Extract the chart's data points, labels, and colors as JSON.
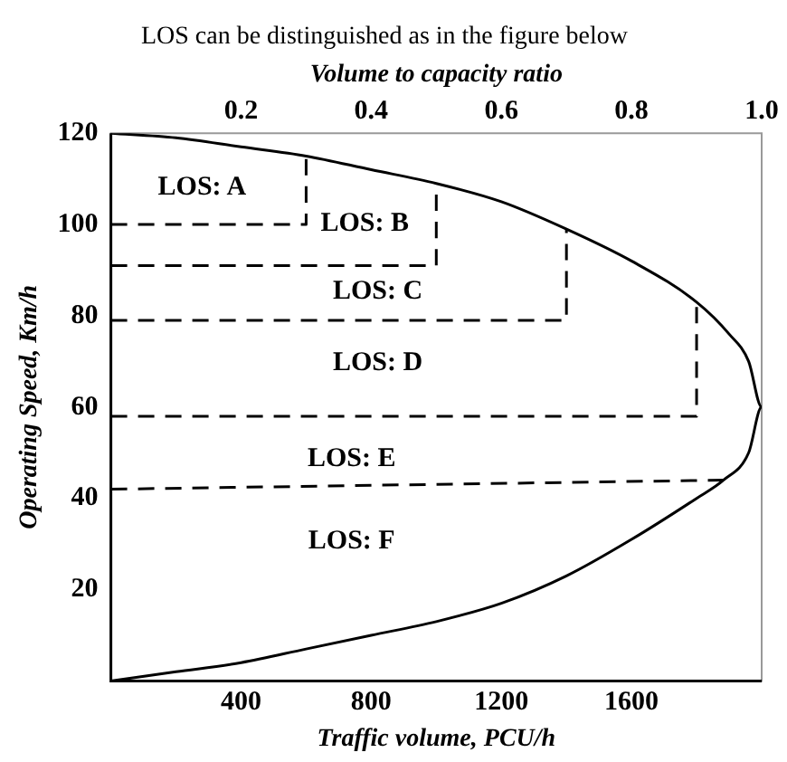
{
  "chart_data": {
    "type": "line",
    "title": "LOS can be distinguished as in the figure below",
    "xlabel": "Traffic volume, PCU/h",
    "ylabel": "Operating Speed, Km/h",
    "x2label": "Volume to capacity ratio",
    "xlim": [
      0,
      2000
    ],
    "xticks": [
      {
        "value": 400,
        "label": "400"
      },
      800,
      1200,
      1600
    ],
    "x2lim": [
      0,
      1
    ],
    "x2ticks": [
      0.2,
      0.4,
      0.6,
      0.8,
      {
        "value": 1,
        "label": "1.0"
      }
    ],
    "ylim": [
      0,
      120
    ],
    "yticks": [
      20,
      40,
      60,
      80,
      100,
      120
    ],
    "grid": false,
    "legend": false,
    "marker": "none",
    "series": [
      {
        "color": "#000000",
        "line_style": "solid",
        "x": [
          0,
          200,
          400,
          600,
          800,
          1000,
          1200,
          1400,
          1600,
          1800,
          1900,
          1960,
          2000,
          1960,
          1883,
          1800,
          1600,
          1400,
          1200,
          1000,
          800,
          600,
          400,
          200,
          0
        ],
        "values": [
          120,
          119,
          117,
          115,
          112,
          109,
          105,
          99,
          92,
          83,
          76,
          70,
          60,
          50,
          44,
          40,
          31,
          23,
          17,
          13,
          10,
          7,
          4,
          2,
          0
        ]
      },
      {
        "color": "#000000",
        "line_style": "dashed",
        "x": [
          0,
          600,
          600
        ],
        "values": [
          100,
          100,
          115
        ]
      },
      {
        "color": "#000000",
        "line_style": "dashed",
        "x": [
          0,
          1000,
          1000
        ],
        "values": [
          91,
          91,
          109
        ]
      },
      {
        "color": "#000000",
        "line_style": "dashed",
        "x": [
          0,
          1400,
          1400
        ],
        "values": [
          79,
          79,
          99
        ]
      },
      {
        "color": "#000000",
        "line_style": "dashed",
        "x": [
          0,
          1800,
          1800
        ],
        "values": [
          58,
          58,
          83
        ]
      },
      {
        "color": "#000000",
        "line_style": "dashed",
        "x": [
          0,
          1883
        ],
        "values": [
          42,
          44
        ]
      }
    ],
    "annotations": [
      "LOS: A",
      "LOS: B",
      "LOS: C",
      "LOS: D",
      "LOS: E",
      "LOS: F"
    ]
  }
}
